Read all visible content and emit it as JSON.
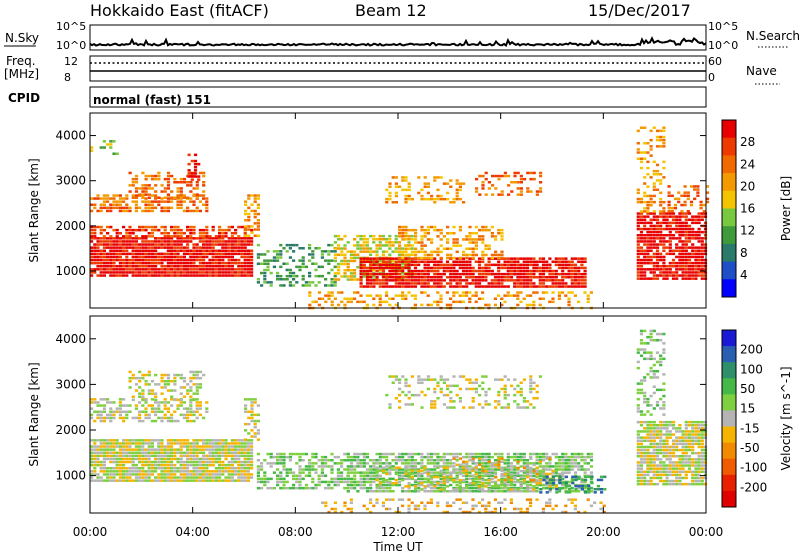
{
  "header": {
    "station": "Hokkaido East (fitACF)",
    "beam": "Beam 12",
    "date": "15/Dec/2017"
  },
  "strip_labels": {
    "nsky": "N.Sky",
    "nsky_ticks": [
      "10^5",
      "10^0"
    ],
    "nsearch": "N.Search",
    "nsearch_ticks": [
      "10^5",
      "10^0"
    ],
    "freq_line1": "Freq.",
    "freq_line2": "[MHz]",
    "freq_ticks": [
      "12",
      "8"
    ],
    "nave": "Nave",
    "nave_ticks": [
      "60",
      "0"
    ],
    "cpid": "CPID",
    "cpid_value": "normal (fast) 151"
  },
  "colors": {
    "power_scale": [
      "#0000ff",
      "#1f4fc6",
      "#2a7a6a",
      "#3f9a3a",
      "#78c840",
      "#f5c400",
      "#f39a00",
      "#f06a00",
      "#ee3a00",
      "#e80000"
    ],
    "velocity_scale": [
      "#1a1ad6",
      "#2a5fb0",
      "#2f8f6a",
      "#46b848",
      "#7fd040",
      "#b4b4b4",
      "#f5b400",
      "#f08a00",
      "#f05a00",
      "#e82000",
      "#e00000"
    ],
    "ground_grey": "#bebebe"
  },
  "chart_data": [
    {
      "type": "heatmap",
      "title": "Power",
      "ylabel": "Slant Range [km]",
      "xlabel": "Time UT",
      "x_ticks": [
        "00:00",
        "04:00",
        "08:00",
        "12:00",
        "16:00",
        "20:00",
        "00:00"
      ],
      "xlim_hours": [
        0,
        24
      ],
      "ylim_km": [
        180,
        4500
      ],
      "y_ticks": [
        1000,
        2000,
        3000,
        4000
      ],
      "colorbar_label": "Power [dB]",
      "colorbar_ticks": [
        4,
        8,
        12,
        16,
        20,
        24,
        28
      ],
      "regions": [
        {
          "t0": 0.0,
          "t1": 6.3,
          "r0": 900,
          "r1": 1750,
          "level": 9,
          "density": 0.92
        },
        {
          "t0": 0.0,
          "t1": 6.3,
          "r0": 1750,
          "r1": 2000,
          "level": 8,
          "density": 0.6
        },
        {
          "t0": 0.0,
          "t1": 4.6,
          "r0": 2300,
          "r1": 2700,
          "level": 7,
          "density": 0.6
        },
        {
          "t0": 1.5,
          "t1": 4.4,
          "r0": 2650,
          "r1": 3200,
          "level": 7,
          "density": 0.45
        },
        {
          "t0": 3.8,
          "t1": 4.2,
          "r0": 3000,
          "r1": 3600,
          "level": 9,
          "density": 0.6
        },
        {
          "t0": 0.0,
          "t1": 1.0,
          "r0": 3500,
          "r1": 3900,
          "level": 4,
          "density": 0.3
        },
        {
          "t0": 6.0,
          "t1": 6.6,
          "r0": 1800,
          "r1": 2700,
          "level": 6,
          "density": 0.6
        },
        {
          "t0": 6.5,
          "t1": 9.5,
          "r0": 700,
          "r1": 1600,
          "level": 3,
          "density": 0.45
        },
        {
          "t0": 9.5,
          "t1": 12.5,
          "r0": 800,
          "r1": 1800,
          "level": 5,
          "density": 0.65
        },
        {
          "t0": 10.5,
          "t1": 19.3,
          "r0": 650,
          "r1": 1300,
          "level": 9,
          "density": 0.85
        },
        {
          "t0": 12.0,
          "t1": 16.0,
          "r0": 1300,
          "r1": 2000,
          "level": 6,
          "density": 0.5
        },
        {
          "t0": 11.5,
          "t1": 14.5,
          "r0": 2500,
          "r1": 3100,
          "level": 6,
          "density": 0.3
        },
        {
          "t0": 15.0,
          "t1": 17.5,
          "r0": 2700,
          "r1": 3200,
          "level": 7,
          "density": 0.35
        },
        {
          "t0": 8.5,
          "t1": 19.5,
          "r0": 200,
          "r1": 550,
          "level": 6,
          "density": 0.35
        },
        {
          "t0": 21.3,
          "t1": 24.0,
          "r0": 800,
          "r1": 2300,
          "level": 9,
          "density": 0.85
        },
        {
          "t0": 21.3,
          "t1": 22.3,
          "r0": 2300,
          "r1": 4200,
          "level": 6,
          "density": 0.4
        },
        {
          "t0": 22.5,
          "t1": 24.0,
          "r0": 2300,
          "r1": 2900,
          "level": 7,
          "density": 0.4
        }
      ]
    },
    {
      "type": "heatmap",
      "title": "Velocity",
      "ylabel": "Slant Range [km]",
      "xlabel": "Time UT",
      "x_ticks": [
        "00:00",
        "04:00",
        "08:00",
        "12:00",
        "16:00",
        "20:00",
        "00:00"
      ],
      "xlim_hours": [
        0,
        24
      ],
      "ylim_km": [
        180,
        4500
      ],
      "y_ticks": [
        1000,
        2000,
        3000,
        4000
      ],
      "colorbar_label": "Velocity [m s^-1]",
      "colorbar_ticks": [
        200,
        100,
        50,
        15,
        -15,
        -50,
        -100,
        -200
      ],
      "regions": [
        {
          "t0": 0.0,
          "t1": 6.3,
          "r0": 900,
          "r1": 1800,
          "level": 5,
          "density": 0.92
        },
        {
          "t0": 0.0,
          "t1": 4.6,
          "r0": 2200,
          "r1": 2700,
          "level": 5,
          "density": 0.55
        },
        {
          "t0": 1.5,
          "t1": 4.4,
          "r0": 2650,
          "r1": 3300,
          "level": 5,
          "density": 0.4
        },
        {
          "t0": 6.0,
          "t1": 6.6,
          "r0": 1800,
          "r1": 2700,
          "level": 5,
          "density": 0.6
        },
        {
          "t0": 6.5,
          "t1": 10.0,
          "r0": 700,
          "r1": 1500,
          "level": 4,
          "density": 0.55
        },
        {
          "t0": 10.0,
          "t1": 19.5,
          "r0": 650,
          "r1": 1500,
          "level": 4,
          "density": 0.75
        },
        {
          "t0": 11.0,
          "t1": 18.5,
          "r0": 700,
          "r1": 1200,
          "level": 5,
          "density": 0.45
        },
        {
          "t0": 14.0,
          "t1": 18.0,
          "r0": 900,
          "r1": 1400,
          "level": 6,
          "density": 0.25
        },
        {
          "t0": 17.5,
          "t1": 20.0,
          "r0": 600,
          "r1": 1000,
          "level": 2,
          "density": 0.4
        },
        {
          "t0": 11.5,
          "t1": 17.5,
          "r0": 2500,
          "r1": 3200,
          "level": 5,
          "density": 0.3
        },
        {
          "t0": 9.0,
          "t1": 20.0,
          "r0": 200,
          "r1": 500,
          "level": 6,
          "density": 0.3
        },
        {
          "t0": 21.3,
          "t1": 24.0,
          "r0": 800,
          "r1": 2200,
          "level": 5,
          "density": 0.85
        },
        {
          "t0": 21.3,
          "t1": 22.3,
          "r0": 2300,
          "r1": 4200,
          "level": 4,
          "density": 0.35
        }
      ]
    }
  ]
}
